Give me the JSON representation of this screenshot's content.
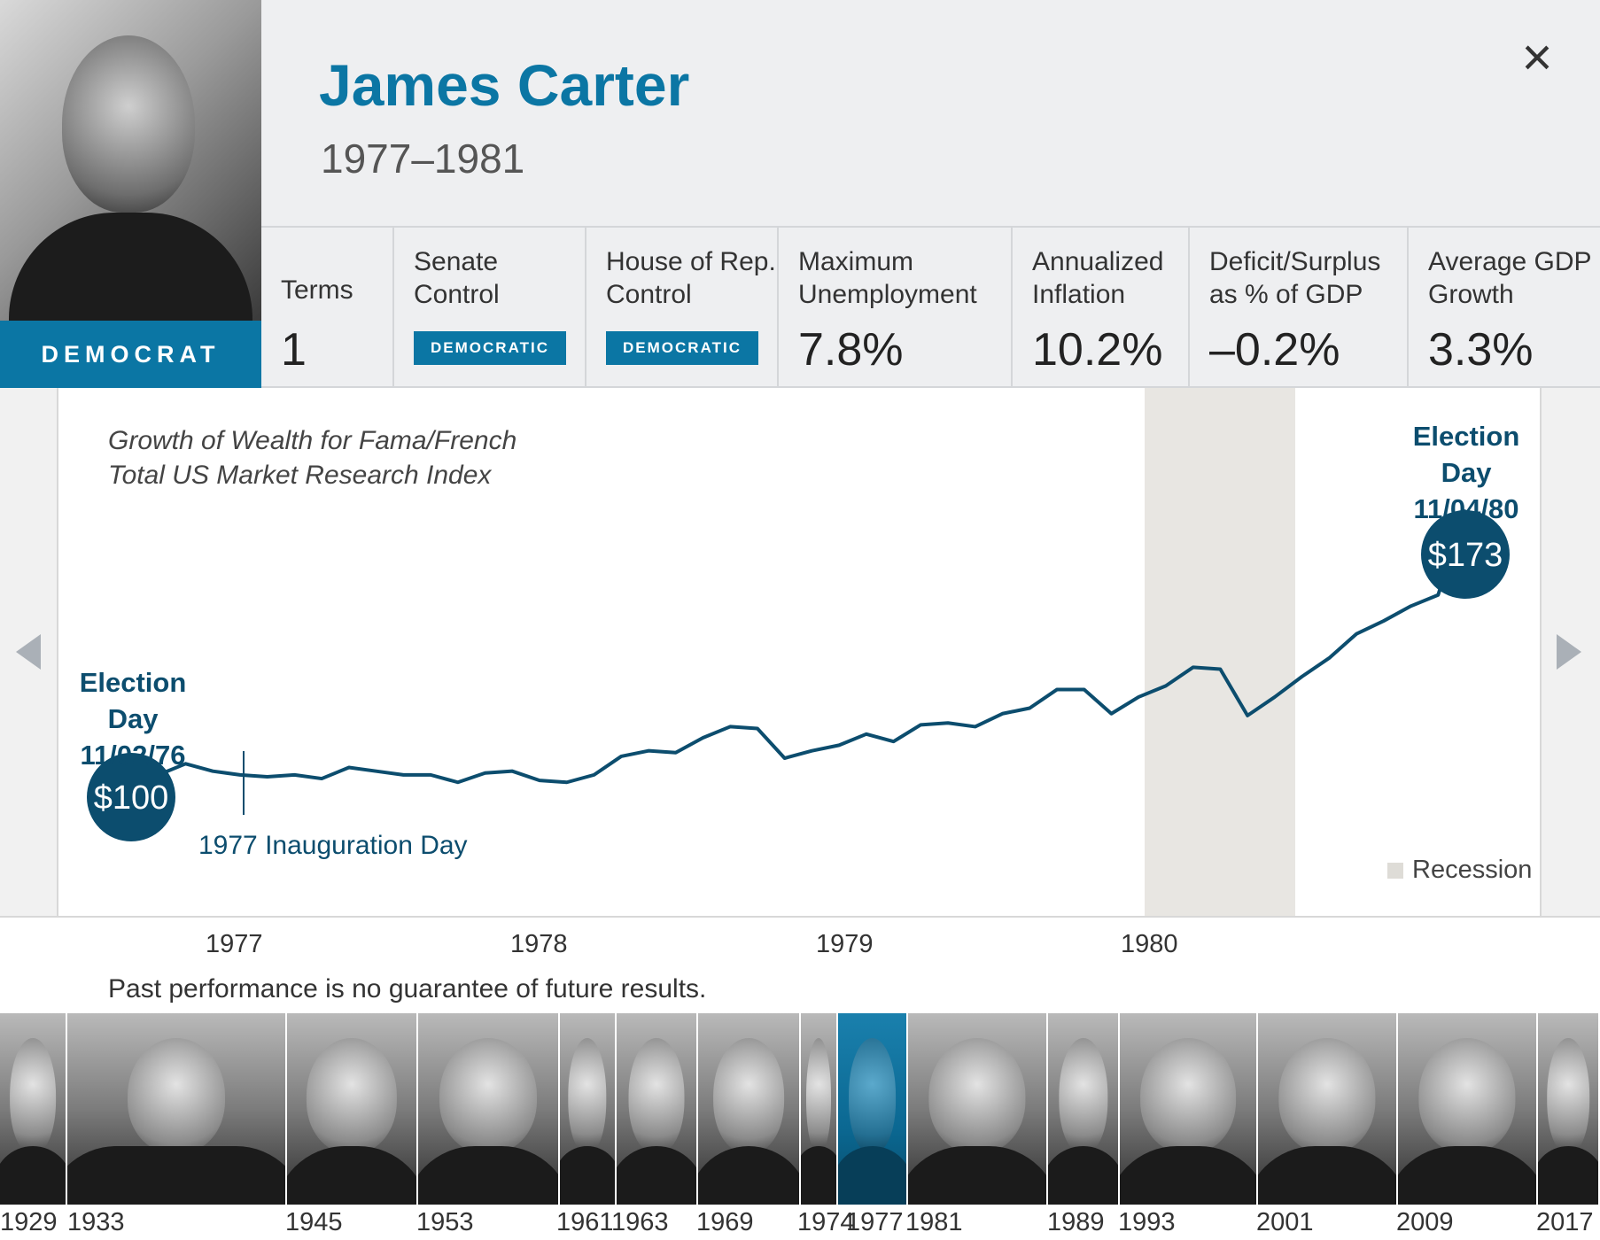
{
  "president": {
    "name": "James Carter",
    "years": "1977–1981",
    "party": "DEMOCRAT"
  },
  "stats": [
    {
      "label": "Terms",
      "value": "1"
    },
    {
      "label": "Senate\nControl",
      "badge": "DEMOCRATIC"
    },
    {
      "label": "House of Rep.\nControl",
      "badge": "DEMOCRATIC"
    },
    {
      "label": "Maximum\nUnemployment",
      "value": "7.8%"
    },
    {
      "label": "Annualized\nInflation",
      "value": "10.2%"
    },
    {
      "label": "Deficit/Surplus\nas % of GDP",
      "value": "–0.2%"
    },
    {
      "label": "Average GDP\nGrowth",
      "value": "3.3%"
    }
  ],
  "chart_subtitle": "Growth of Wealth for Fama/French\nTotal US Market Research Index",
  "chart_data": {
    "type": "line",
    "series": [
      {
        "values": [
          100,
          101,
          104,
          102,
          101,
          100.5,
          101,
          100,
          103,
          102,
          101,
          101,
          99,
          101.5,
          102,
          99.5,
          99,
          101,
          106,
          107.5,
          107,
          111,
          114,
          113.5,
          105.5,
          107.5,
          109,
          112,
          110,
          114.5,
          115,
          114,
          117.5,
          119,
          124,
          124,
          117.5,
          122,
          125,
          130,
          129.5,
          117,
          122,
          127.5,
          132.5,
          139,
          142.5,
          146.5,
          149.5,
          172.5
        ]
      }
    ],
    "start_value_label": "$100",
    "end_value_label": "$173",
    "recession_label": "Recession",
    "x_ticks": [
      "1977",
      "1978",
      "1979",
      "1980"
    ]
  },
  "events": {
    "start": {
      "title": "Election Day",
      "date": "11/02/76"
    },
    "end": {
      "title": "Election Day",
      "date": "11/04/80"
    },
    "inauguration": "1977 Inauguration Day"
  },
  "disclaimer": "Past performance is no guarantee of future results.",
  "timeline_years": [
    "1929",
    "1933",
    "1945",
    "1953",
    "1961",
    "1963",
    "1969",
    "1974",
    "1977",
    "1981",
    "1989",
    "1993",
    "2001",
    "2009",
    "2017"
  ],
  "close_icon": "×",
  "colors": {
    "brand": "#0b76a4",
    "line": "#0c4d6e",
    "recession": "#e8e6e2"
  }
}
